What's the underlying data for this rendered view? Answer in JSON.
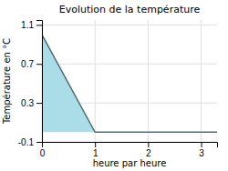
{
  "chart_data": {
    "type": "area",
    "title": "Evolution de la température",
    "xlabel": "heure par heure",
    "ylabel": "Température en °C",
    "x": [
      0,
      1,
      1,
      3.3
    ],
    "values": [
      1.0,
      0.0,
      0.0,
      0.0
    ],
    "xlim": [
      0,
      3.3
    ],
    "ylim": [
      -0.1,
      1.15
    ],
    "xticks": [
      0,
      1,
      2,
      3
    ],
    "yticks": [
      -0.1,
      0.3,
      0.7,
      1.1
    ],
    "color": "#aadde8",
    "grid": true
  }
}
